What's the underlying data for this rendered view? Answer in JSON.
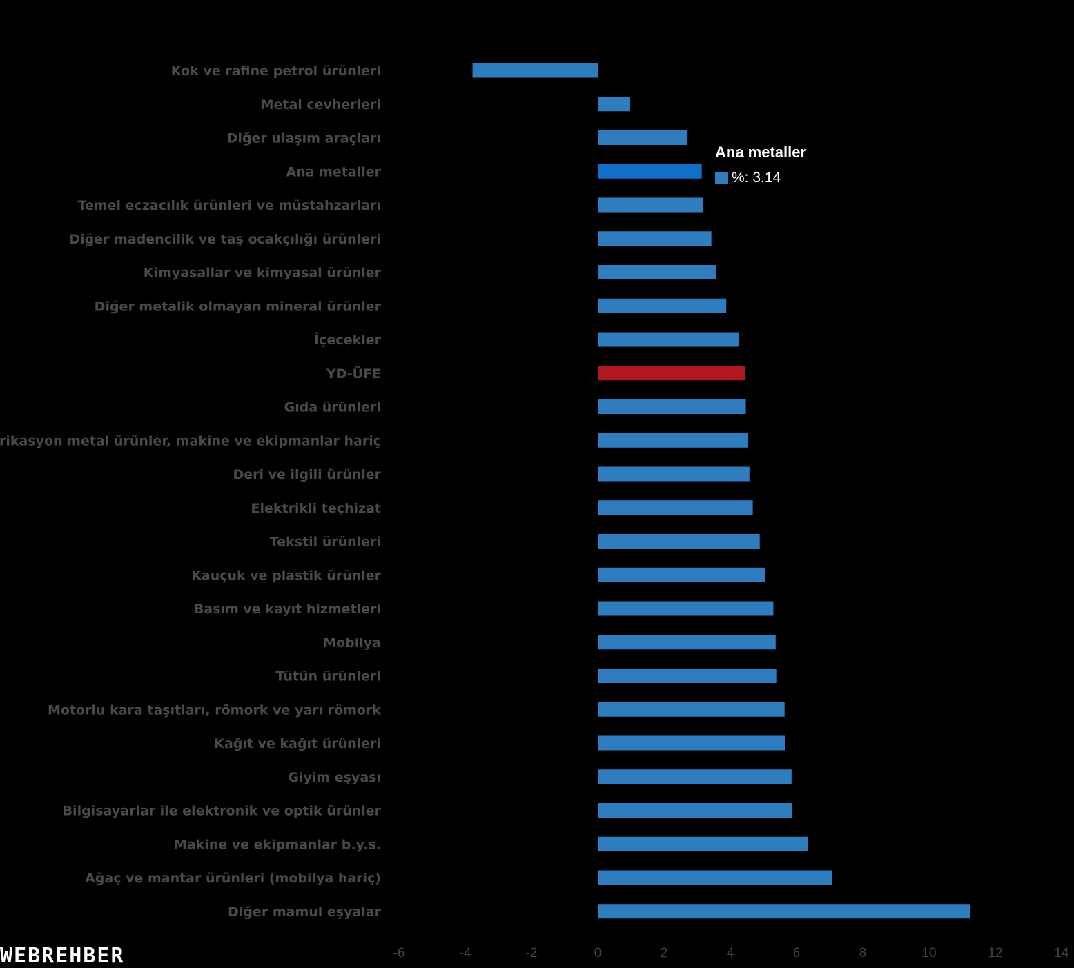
{
  "chart_data": {
    "type": "bar",
    "orientation": "horizontal",
    "categories": [
      "Kok ve rafine petrol ürünleri",
      "Metal cevherleri",
      "Diğer ulaşım araçları",
      "Ana metaller",
      "Temel eczacılık ürünleri ve müstahzarları",
      "Diğer madencilik ve taş ocakçılığı ürünleri",
      "Kimyasallar ve kimyasal ürünler",
      "Diğer metalik olmayan mineral ürünler",
      "İçecekler",
      "YD-ÜFE",
      "Gıda ürünleri",
      "Fabrikasyon metal ürünler, makine ve ekipmanlar hariç",
      "Deri ve ilgili ürünler",
      "Elektrikli teçhizat",
      "Tekstil ürünleri",
      "Kauçuk ve plastik ürünler",
      "Basım ve kayıt hizmetleri",
      "Mobilya",
      "Tütün ürünleri",
      "Motorlu kara taşıtları, römork ve yarı römork",
      "Kağıt ve kağıt ürünleri",
      "Giyim eşyası",
      "Bilgisayarlar ile elektronik ve optik ürünler",
      "Makine ve ekipmanlar b.y.s.",
      "Ağaç ve mantar ürünleri (mobilya hariç)",
      "Diğer mamul eşyalar"
    ],
    "values": [
      -3.78,
      0.98,
      2.71,
      3.14,
      3.17,
      3.43,
      3.57,
      3.88,
      4.26,
      4.45,
      4.47,
      4.52,
      4.58,
      4.68,
      4.89,
      5.06,
      5.3,
      5.37,
      5.39,
      5.64,
      5.66,
      5.85,
      5.87,
      6.34,
      7.07,
      11.24
    ],
    "xlim": [
      -6,
      14
    ],
    "xticks": [
      -6,
      -4,
      -2,
      0,
      2,
      4,
      6,
      8,
      10,
      12,
      14
    ],
    "colors": {
      "default": "#2f7dbf",
      "highlight": "#1070c8",
      "reference": "#b01821"
    },
    "highlighted_category": "Ana metaller",
    "reference_category": "YD-ÜFE",
    "grid": false,
    "legend": "none"
  },
  "tooltip": {
    "title": "Ana metaller",
    "text": "%: 3.14",
    "color": "#2f7dbf"
  },
  "logo": {
    "text": "WEBREHBER"
  }
}
